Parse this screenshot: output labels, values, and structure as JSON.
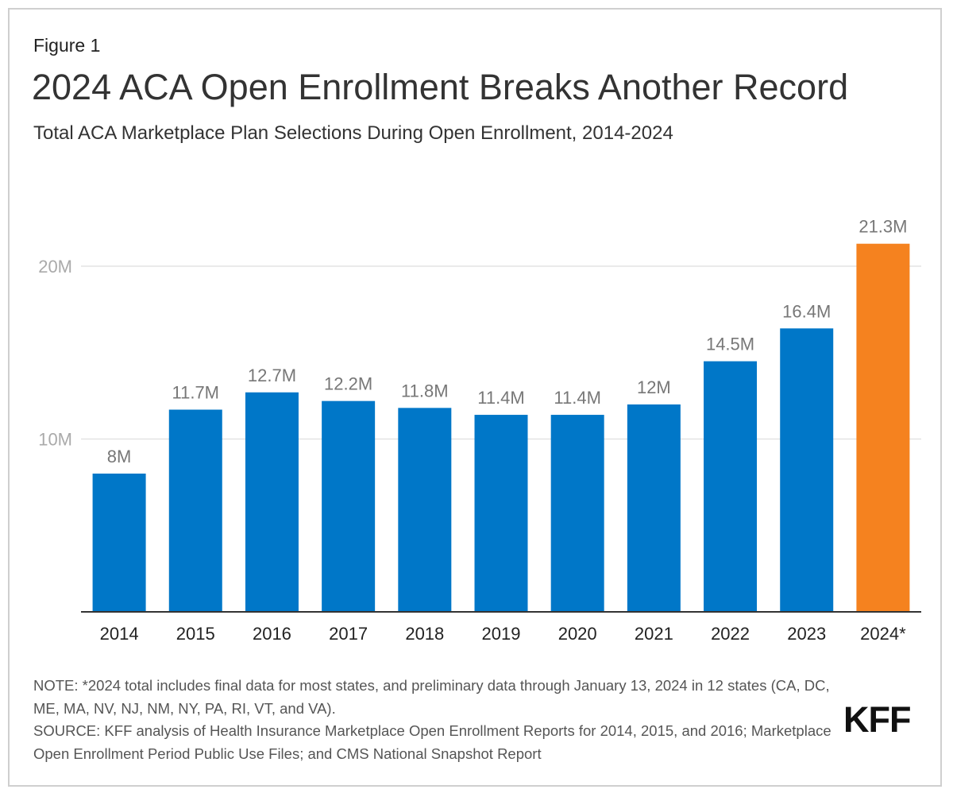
{
  "figure_label": "Figure 1",
  "logo_text": "KFF",
  "note": "NOTE: *2024 total includes final data for most states, and preliminary data through January 13, 2024 in 12 states (CA, DC, ME, MA, NV, NJ, NM, NY, PA, RI, VT, and VA).",
  "source": "SOURCE: KFF analysis of Health Insurance Marketplace Open Enrollment Reports for 2014, 2015, and 2016; Marketplace Open Enrollment Period Public Use Files; and CMS National Snapshot Report",
  "colors": {
    "bar": "#0077c8",
    "highlight": "#f5821f",
    "gridline": "#e3e3e3",
    "axis": "#333333",
    "tick_label": "#aaaaaa",
    "data_label": "#777777"
  },
  "chart_data": {
    "type": "bar",
    "title": "2024 ACA Open Enrollment Breaks Another Record",
    "subtitle": "Total ACA Marketplace Plan Selections During Open Enrollment, 2014-2024",
    "xlabel": "",
    "ylabel": "",
    "grid": true,
    "legend": "none",
    "categories": [
      "2014",
      "2015",
      "2016",
      "2017",
      "2018",
      "2019",
      "2020",
      "2021",
      "2022",
      "2023",
      "2024*"
    ],
    "values": [
      8.0,
      11.7,
      12.7,
      12.2,
      11.8,
      11.4,
      11.4,
      12.0,
      14.5,
      16.4,
      21.3
    ],
    "data_labels": [
      "8M",
      "11.7M",
      "12.7M",
      "12.2M",
      "11.8M",
      "11.4M",
      "11.4M",
      "12M",
      "14.5M",
      "16.4M",
      "21.3M"
    ],
    "highlight_category": "2024*",
    "ylim": [
      0,
      22
    ],
    "y_ticks": [
      10,
      20
    ],
    "y_tick_labels": [
      "10M",
      "20M"
    ]
  }
}
